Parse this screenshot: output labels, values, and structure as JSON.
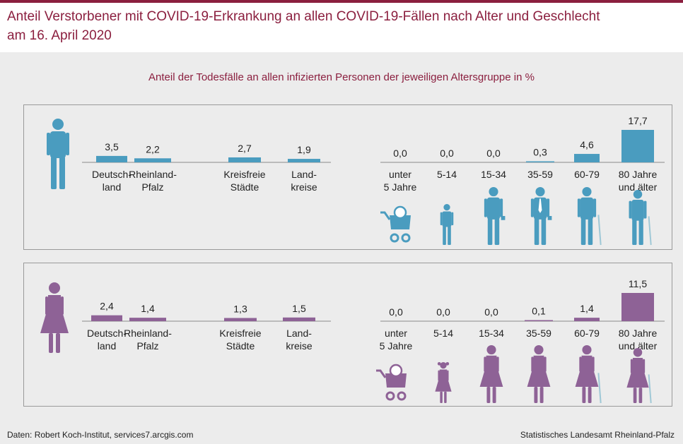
{
  "header": {
    "title_line1": "Anteil Verstorbener mit COVID-19-Erkrankung an allen COVID-19-Fällen nach Alter und Geschlecht",
    "title_line2": "am 16. April 2020"
  },
  "subtitle": "Anteil der Todesfälle an allen infizierten Personen der jeweiligen Altersgruppe in %",
  "footer": {
    "source": "Daten: Robert  Koch-Institut, services7.arcgis.com",
    "publisher": "Statistisches Landesamt Rheinland-Pfalz"
  },
  "colors": {
    "male": "#4a9cbf",
    "female": "#8e6296",
    "title": "#8b1f3f"
  },
  "chart_data": [
    {
      "type": "bar",
      "series": [
        {
          "name": "",
          "values": [
            3.5,
            2.2,
            2.7,
            1.9,
            0.0,
            0.0,
            0.0,
            0.3,
            4.6,
            17.7
          ]
        }
      ],
      "categories": [
        [
          "Deutsch-",
          "land"
        ],
        [
          "Rheinland-",
          "Pfalz"
        ],
        [
          "Kreisfreie",
          "Städte"
        ],
        [
          "Land-",
          "kreise"
        ],
        [
          "unter",
          "5 Jahre"
        ],
        [
          "5-14"
        ],
        [
          "15-34"
        ],
        [
          "35-59"
        ],
        [
          "60-79"
        ],
        [
          "80 Jahre",
          "und älter"
        ]
      ],
      "value_labels": [
        "3,5",
        "2,2",
        "2,7",
        "1,9",
        "0,0",
        "0,0",
        "0,0",
        "0,3",
        "4,6",
        "17,7"
      ],
      "icon": "male-person-icon",
      "age_icons": [
        "baby-stroller-icon",
        "boy-icon",
        "young-man-icon",
        "man-with-tie-icon",
        "older-man-cane-icon",
        "elderly-man-cane-icon"
      ],
      "xlabel": "",
      "ylabel": "",
      "ylim": [
        0,
        18
      ]
    },
    {
      "type": "bar",
      "series": [
        {
          "name": "",
          "values": [
            2.4,
            1.4,
            1.3,
            1.5,
            0.0,
            0.0,
            0.0,
            0.1,
            1.4,
            11.5
          ]
        }
      ],
      "categories": [
        [
          "Deutsch-",
          "land"
        ],
        [
          "Rheinland-",
          "Pfalz"
        ],
        [
          "Kreisfreie",
          "Städte"
        ],
        [
          "Land-",
          "kreise"
        ],
        [
          "unter",
          "5 Jahre"
        ],
        [
          "5-14"
        ],
        [
          "15-34"
        ],
        [
          "35-59"
        ],
        [
          "60-79"
        ],
        [
          "80 Jahre",
          "und älter"
        ]
      ],
      "value_labels": [
        "2,4",
        "1,4",
        "1,3",
        "1,5",
        "0,0",
        "0,0",
        "0,0",
        "0,1",
        "1,4",
        "11,5"
      ],
      "icon": "female-person-icon",
      "age_icons": [
        "baby-stroller-icon",
        "girl-icon",
        "young-woman-icon",
        "woman-icon",
        "older-woman-cane-icon",
        "elderly-woman-cane-icon"
      ],
      "xlabel": "",
      "ylabel": "",
      "ylim": [
        0,
        18
      ]
    }
  ]
}
